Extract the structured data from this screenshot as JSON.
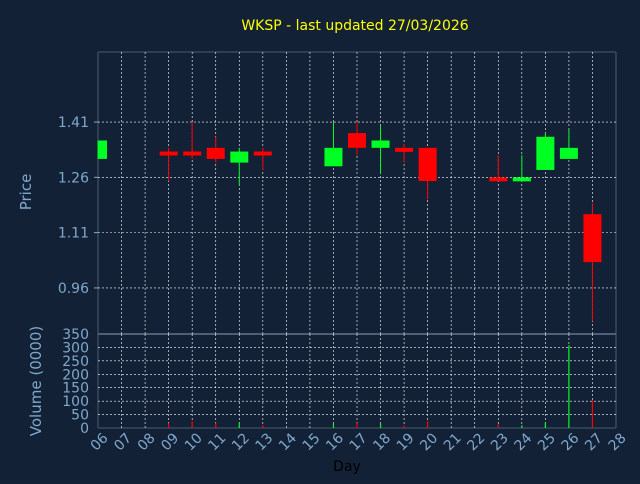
{
  "chart_data": [
    {
      "type": "candlestick",
      "title": "WKSP - last updated 27/03/2026",
      "ylabel": "Price",
      "ylim": [
        0.835,
        1.6
      ],
      "yticks": [
        "0.96",
        "1.11",
        "1.26",
        "1.41"
      ],
      "ytick_values": [
        0.96,
        1.11,
        1.26,
        1.41
      ],
      "grid": true,
      "candles": [
        {
          "day": "06",
          "open": 1.31,
          "high": 1.36,
          "low": 1.31,
          "close": 1.36
        },
        {
          "day": "09",
          "open": 1.33,
          "high": 1.34,
          "low": 1.25,
          "close": 1.32
        },
        {
          "day": "10",
          "open": 1.33,
          "high": 1.41,
          "low": 1.31,
          "close": 1.32
        },
        {
          "day": "11",
          "open": 1.34,
          "high": 1.37,
          "low": 1.3,
          "close": 1.31
        },
        {
          "day": "12",
          "open": 1.3,
          "high": 1.34,
          "low": 1.24,
          "close": 1.33
        },
        {
          "day": "13",
          "open": 1.33,
          "high": 1.34,
          "low": 1.28,
          "close": 1.32
        },
        {
          "day": "16",
          "open": 1.29,
          "high": 1.41,
          "low": 1.29,
          "close": 1.34
        },
        {
          "day": "17",
          "open": 1.38,
          "high": 1.41,
          "low": 1.32,
          "close": 1.34
        },
        {
          "day": "18",
          "open": 1.34,
          "high": 1.4,
          "low": 1.27,
          "close": 1.36
        },
        {
          "day": "19",
          "open": 1.34,
          "high": 1.35,
          "low": 1.3,
          "close": 1.33
        },
        {
          "day": "20",
          "open": 1.34,
          "high": 1.34,
          "low": 1.2,
          "close": 1.25
        },
        {
          "day": "23",
          "open": 1.26,
          "high": 1.32,
          "low": 1.25,
          "close": 1.25
        },
        {
          "day": "24",
          "open": 1.25,
          "high": 1.32,
          "low": 1.25,
          "close": 1.26
        },
        {
          "day": "25",
          "open": 1.28,
          "high": 1.38,
          "low": 1.28,
          "close": 1.37
        },
        {
          "day": "26",
          "open": 1.31,
          "high": 1.39,
          "low": 1.31,
          "close": 1.34
        },
        {
          "day": "27",
          "open": 1.16,
          "high": 1.19,
          "low": 0.87,
          "close": 1.03
        }
      ]
    },
    {
      "type": "bar",
      "ylabel": "Volume (0000)",
      "xlabel": "Day",
      "ylim": [
        0,
        350
      ],
      "yticks": [
        "0",
        "50",
        "100",
        "150",
        "200",
        "250",
        "300",
        "350"
      ],
      "ytick_values": [
        0,
        50,
        100,
        150,
        200,
        250,
        300,
        350
      ],
      "grid": true,
      "categories": [
        "06",
        "07",
        "08",
        "09",
        "10",
        "11",
        "12",
        "13",
        "14",
        "15",
        "16",
        "17",
        "18",
        "19",
        "20",
        "21",
        "22",
        "23",
        "24",
        "25",
        "26",
        "27",
        "28"
      ],
      "volumes": [
        {
          "day": "09",
          "value": 18,
          "dir": "down"
        },
        {
          "day": "10",
          "value": 25,
          "dir": "down"
        },
        {
          "day": "11",
          "value": 18,
          "dir": "down"
        },
        {
          "day": "12",
          "value": 20,
          "dir": "up"
        },
        {
          "day": "13",
          "value": 10,
          "dir": "down"
        },
        {
          "day": "16",
          "value": 15,
          "dir": "up"
        },
        {
          "day": "17",
          "value": 18,
          "dir": "down"
        },
        {
          "day": "18",
          "value": 15,
          "dir": "up"
        },
        {
          "day": "19",
          "value": 10,
          "dir": "down"
        },
        {
          "day": "20",
          "value": 25,
          "dir": "down"
        },
        {
          "day": "23",
          "value": 15,
          "dir": "down"
        },
        {
          "day": "24",
          "value": 10,
          "dir": "up"
        },
        {
          "day": "25",
          "value": 20,
          "dir": "up"
        },
        {
          "day": "26",
          "value": 308,
          "dir": "up"
        },
        {
          "day": "27",
          "value": 105,
          "dir": "down"
        }
      ]
    }
  ],
  "colors": {
    "background": "#132136",
    "up": "#00ff22",
    "down": "#ff0000",
    "grid": "#ffffff",
    "axis_text": "#7fa8cc",
    "title": "#ffff00",
    "xlabel": "#000000"
  }
}
